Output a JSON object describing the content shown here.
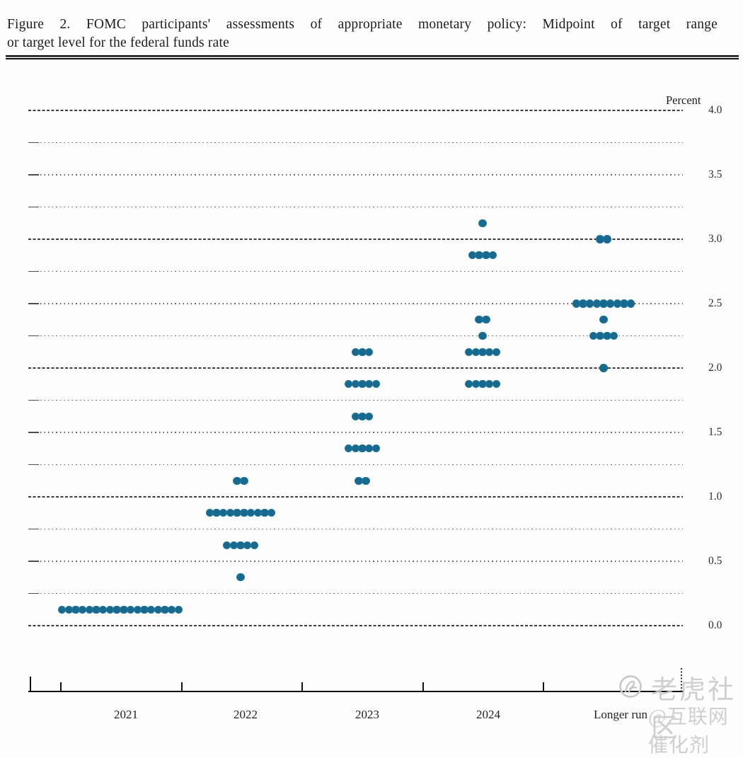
{
  "header": {
    "title_line1": "Figure 2.  FOMC participants' assessments of appropriate monetary policy:  Midpoint of target range",
    "title_line2": "or target level for the federal funds rate"
  },
  "chart_data": {
    "type": "scatter",
    "title": "FOMC participants' assessments of appropriate monetary policy: Midpoint of target range or target level for the federal funds rate",
    "ylabel": "Percent",
    "xlabel": "",
    "ylim": [
      0.0,
      4.0
    ],
    "ytick_step": 0.25,
    "ytick_label_step": 0.5,
    "ytick_labels": [
      "0.0",
      "0.5",
      "1.0",
      "1.5",
      "2.0",
      "2.5",
      "3.0",
      "3.5",
      "4.0"
    ],
    "grid": "horizontal; dashed at integers, dotted at quarter-point steps",
    "legend": "none",
    "categories": [
      "2021",
      "2022",
      "2023",
      "2024",
      "Longer run"
    ],
    "dot_color": "#16698f",
    "dot_edge_color": "#2d9cc0",
    "series": [
      {
        "category": "2021",
        "dots": [
          {
            "rate": 0.125,
            "count": 18
          }
        ]
      },
      {
        "category": "2022",
        "dots": [
          {
            "rate": 1.125,
            "count": 2
          },
          {
            "rate": 0.875,
            "count": 10
          },
          {
            "rate": 0.625,
            "count": 5
          },
          {
            "rate": 0.375,
            "count": 1
          }
        ]
      },
      {
        "category": "2023",
        "dots": [
          {
            "rate": 2.125,
            "count": 3
          },
          {
            "rate": 1.875,
            "count": 5
          },
          {
            "rate": 1.625,
            "count": 3
          },
          {
            "rate": 1.375,
            "count": 5
          },
          {
            "rate": 1.125,
            "count": 2
          }
        ]
      },
      {
        "category": "2024",
        "dots": [
          {
            "rate": 3.125,
            "count": 1
          },
          {
            "rate": 2.875,
            "count": 4
          },
          {
            "rate": 2.375,
            "count": 2
          },
          {
            "rate": 2.25,
            "count": 1
          },
          {
            "rate": 2.125,
            "count": 5
          },
          {
            "rate": 1.875,
            "count": 5
          }
        ]
      },
      {
        "category": "Longer run",
        "dots": [
          {
            "rate": 3.0,
            "count": 2
          },
          {
            "rate": 2.5,
            "count": 9
          },
          {
            "rate": 2.375,
            "count": 1
          },
          {
            "rate": 2.25,
            "count": 4
          },
          {
            "rate": 2.0,
            "count": 1
          }
        ]
      }
    ]
  },
  "watermark": {
    "brand": "老虎社区",
    "handle": "@互联网催化剂"
  }
}
